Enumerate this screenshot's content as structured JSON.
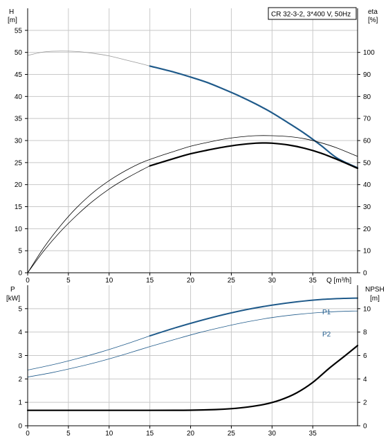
{
  "chart_data": [
    {
      "type": "line",
      "title": "CR 32-3-2, 3*400 V, 50Hz",
      "xlabel": "Q [m³/h]",
      "x_unit": "",
      "xlim": [
        0,
        40.5
      ],
      "xticks": [
        0,
        5,
        10,
        15,
        20,
        25,
        30,
        35
      ],
      "y_left": {
        "label": "H",
        "unit": "[m]",
        "lim": [
          0,
          60
        ],
        "ticks": [
          0,
          5,
          10,
          15,
          20,
          25,
          30,
          35,
          40,
          45,
          50,
          55
        ]
      },
      "y_right": {
        "label": "eta",
        "unit": "[%]",
        "lim": [
          0,
          120
        ],
        "ticks": [
          0,
          10,
          20,
          30,
          40,
          50,
          60,
          70,
          80,
          90,
          100
        ]
      },
      "grid": true,
      "series": [
        {
          "axis": "left",
          "color": "#999999",
          "width": 0.8,
          "x": [
            0,
            2,
            4,
            6,
            8,
            10,
            12,
            14,
            15
          ],
          "y": [
            49.3,
            50.1,
            50.3,
            50.2,
            49.8,
            49.2,
            48.3,
            47.4,
            46.9
          ]
        },
        {
          "axis": "left",
          "color": "#1f5a8a",
          "width": 2.2,
          "x": [
            15,
            18,
            20,
            22,
            24,
            26,
            28,
            30,
            32,
            34,
            36,
            38,
            40.5
          ],
          "y": [
            46.9,
            45.5,
            44.4,
            43.2,
            41.7,
            40.1,
            38.3,
            36.3,
            34.0,
            31.6,
            28.9,
            26.0,
            23.8
          ]
        },
        {
          "axis": "right",
          "color": "#000000",
          "width": 0.8,
          "x": [
            0,
            2,
            4,
            6,
            8,
            10,
            12,
            14,
            16,
            18,
            20,
            22,
            24,
            26,
            28,
            30,
            32,
            34,
            36,
            38,
            40.5
          ],
          "y": [
            0,
            11.5,
            21.2,
            29.5,
            36.3,
            41.8,
            46.3,
            50.0,
            52.7,
            55.1,
            57.4,
            59.1,
            60.6,
            61.6,
            62.2,
            62.2,
            61.8,
            60.8,
            59.0,
            56.6,
            52.8
          ]
        },
        {
          "axis": "right",
          "color": "#000000",
          "width": 0.8,
          "x": [
            0,
            2,
            4,
            6,
            8,
            10,
            12,
            14,
            15
          ],
          "y": [
            0,
            10.0,
            18.6,
            26.0,
            32.5,
            38.0,
            42.6,
            46.6,
            48.5
          ]
        },
        {
          "axis": "right",
          "color": "#000000",
          "width": 2.2,
          "x": [
            15,
            18,
            20,
            22,
            24,
            26,
            28,
            29,
            30,
            32,
            34,
            36,
            38,
            40.5
          ],
          "y": [
            48.5,
            51.9,
            54.0,
            55.6,
            57.0,
            58.1,
            58.8,
            58.9,
            58.8,
            58.0,
            56.5,
            54.3,
            51.4,
            47.4
          ]
        }
      ]
    },
    {
      "type": "line",
      "title": "",
      "xlabel": "",
      "xlim": [
        0,
        40.5
      ],
      "xticks": [
        0,
        5,
        10,
        15,
        20,
        25,
        30,
        35
      ],
      "y_left": {
        "label": "P",
        "unit": "[kW]",
        "lim": [
          0,
          6
        ],
        "ticks": [
          0,
          1,
          2,
          3,
          4,
          5
        ]
      },
      "y_right": {
        "label": "NPSH",
        "unit": "[m]",
        "lim": [
          0,
          12
        ],
        "ticks": [
          0,
          2,
          4,
          6,
          8,
          10
        ]
      },
      "grid": true,
      "series": [
        {
          "name": "P1",
          "axis": "left",
          "color": "#1f5a8a",
          "width": 0.8,
          "x": [
            0,
            3,
            6,
            9,
            12,
            15
          ],
          "y": [
            2.38,
            2.6,
            2.86,
            3.15,
            3.48,
            3.84
          ]
        },
        {
          "name": "P1",
          "axis": "left",
          "color": "#1f5a8a",
          "width": 2.0,
          "x": [
            15,
            18,
            21,
            24,
            27,
            30,
            33,
            36,
            39,
            40.5
          ],
          "y": [
            3.84,
            4.17,
            4.47,
            4.74,
            4.97,
            5.15,
            5.29,
            5.39,
            5.44,
            5.45
          ]
        },
        {
          "name": "P2",
          "axis": "left",
          "color": "#1f5a8a",
          "width": 0.8,
          "x": [
            0,
            3,
            6,
            9,
            12,
            15,
            18,
            21,
            24,
            27,
            30,
            33,
            36,
            39,
            40.5
          ],
          "y": [
            2.08,
            2.27,
            2.5,
            2.76,
            3.06,
            3.38,
            3.68,
            3.97,
            4.22,
            4.44,
            4.62,
            4.75,
            4.84,
            4.89,
            4.9
          ]
        },
        {
          "axis": "right",
          "color": "#000000",
          "width": 2.2,
          "x": [
            0,
            15,
            20,
            23,
            25,
            27,
            29,
            31,
            33,
            35,
            37,
            39,
            40.5
          ],
          "y": [
            1.32,
            1.32,
            1.33,
            1.38,
            1.46,
            1.6,
            1.82,
            2.2,
            2.8,
            3.7,
            4.9,
            6.0,
            6.85
          ]
        }
      ],
      "labels": [
        "P1",
        "P2"
      ]
    }
  ]
}
